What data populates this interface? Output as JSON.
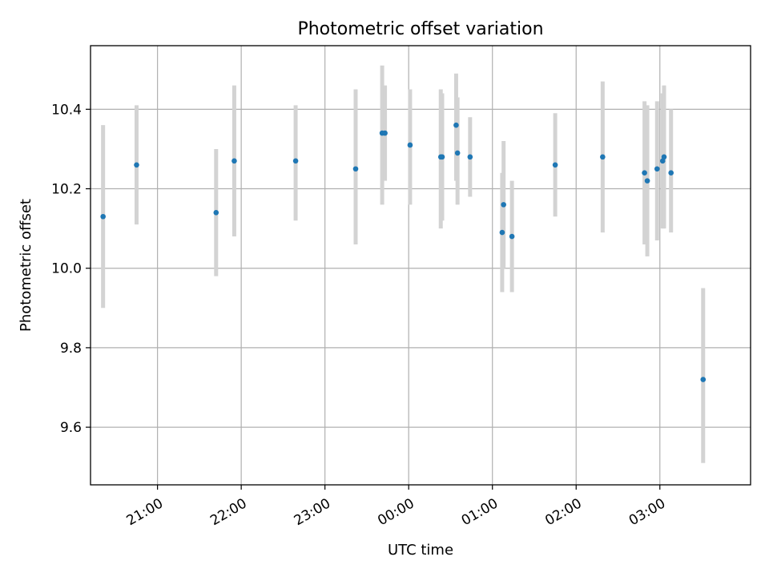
{
  "chart_data": {
    "type": "scatter",
    "title": "Photometric offset variation",
    "xlabel": "UTC time",
    "ylabel": "Photometric offset",
    "x_axis_type": "time",
    "xlim": [
      "20:12",
      "04:05"
    ],
    "ylim": [
      9.455,
      10.56
    ],
    "x_ticks": [
      "21:00",
      "22:00",
      "23:00",
      "00:00",
      "01:00",
      "02:00",
      "03:00"
    ],
    "x_tick_labels_rotated": true,
    "y_ticks": [
      9.6,
      9.8,
      10.0,
      10.2,
      10.4
    ],
    "y_tick_labels": [
      "9.6",
      "9.8",
      "10.0",
      "10.2",
      "10.4"
    ],
    "grid": true,
    "error_bar_color": "#d3d3d3",
    "marker_color": "#1f77b4",
    "points": [
      {
        "t": "20:21",
        "y": 10.13,
        "ylo": 9.9,
        "yhi": 10.36
      },
      {
        "t": "20:45",
        "y": 10.26,
        "ylo": 10.11,
        "yhi": 10.41
      },
      {
        "t": "21:42",
        "y": 10.14,
        "ylo": 9.98,
        "yhi": 10.3
      },
      {
        "t": "21:55",
        "y": 10.27,
        "ylo": 10.08,
        "yhi": 10.46
      },
      {
        "t": "22:39",
        "y": 10.27,
        "ylo": 10.12,
        "yhi": 10.41
      },
      {
        "t": "23:22",
        "y": 10.25,
        "ylo": 10.06,
        "yhi": 10.45
      },
      {
        "t": "23:41",
        "y": 10.34,
        "ylo": 10.16,
        "yhi": 10.51
      },
      {
        "t": "23:43",
        "y": 10.34,
        "ylo": 10.22,
        "yhi": 10.46
      },
      {
        "t": "00:01",
        "y": 10.31,
        "ylo": 10.16,
        "yhi": 10.45
      },
      {
        "t": "00:23",
        "y": 10.28,
        "ylo": 10.1,
        "yhi": 10.45
      },
      {
        "t": "00:24",
        "y": 10.28,
        "ylo": 10.12,
        "yhi": 10.44
      },
      {
        "t": "00:34",
        "y": 10.36,
        "ylo": 10.22,
        "yhi": 10.49
      },
      {
        "t": "00:35",
        "y": 10.29,
        "ylo": 10.16,
        "yhi": 10.43
      },
      {
        "t": "00:44",
        "y": 10.28,
        "ylo": 10.18,
        "yhi": 10.38
      },
      {
        "t": "01:07",
        "y": 10.09,
        "ylo": 9.94,
        "yhi": 10.24
      },
      {
        "t": "01:08",
        "y": 10.16,
        "ylo": 10.0,
        "yhi": 10.32
      },
      {
        "t": "01:14",
        "y": 10.08,
        "ylo": 9.94,
        "yhi": 10.22
      },
      {
        "t": "01:45",
        "y": 10.26,
        "ylo": 10.13,
        "yhi": 10.39
      },
      {
        "t": "02:19",
        "y": 10.28,
        "ylo": 10.09,
        "yhi": 10.47
      },
      {
        "t": "02:49",
        "y": 10.24,
        "ylo": 10.06,
        "yhi": 10.42
      },
      {
        "t": "02:51",
        "y": 10.22,
        "ylo": 10.03,
        "yhi": 10.41
      },
      {
        "t": "02:58",
        "y": 10.25,
        "ylo": 10.07,
        "yhi": 10.42
      },
      {
        "t": "03:02",
        "y": 10.27,
        "ylo": 10.1,
        "yhi": 10.44
      },
      {
        "t": "03:03",
        "y": 10.28,
        "ylo": 10.1,
        "yhi": 10.46
      },
      {
        "t": "03:08",
        "y": 10.24,
        "ylo": 10.09,
        "yhi": 10.4
      },
      {
        "t": "03:31",
        "y": 9.72,
        "ylo": 9.51,
        "yhi": 9.95
      }
    ]
  }
}
